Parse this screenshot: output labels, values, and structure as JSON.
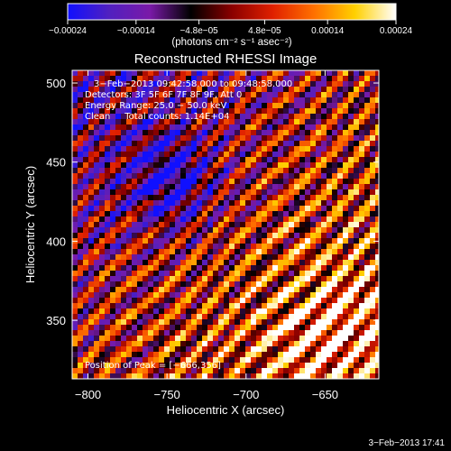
{
  "chart_data": {
    "type": "heatmap",
    "title": "Reconstructed RHESSI Image",
    "xlabel": "Heliocentric X (arcsec)",
    "ylabel": "Heliocentric Y (arcsec)",
    "xlim": [
      -810,
      -616
    ],
    "ylim": [
      313,
      508
    ],
    "x_ticks": [
      -800,
      -750,
      -700,
      -650
    ],
    "x_tick_labels": [
      "−800",
      "−750",
      "−700",
      "−650"
    ],
    "y_ticks": [
      350,
      400,
      450,
      500
    ],
    "y_tick_labels": [
      "350",
      "400",
      "450",
      "500"
    ],
    "colorbar": {
      "range": [
        -0.00024,
        0.00024
      ],
      "tick_values": [
        -0.00024,
        -0.00014,
        -4.8e-05,
        4.8e-05,
        0.00014,
        0.00024
      ],
      "tick_labels": [
        "−0.00024",
        "−0.00014",
        "−4.8e−05",
        "4.8e−05",
        "0.00014",
        "0.00024"
      ],
      "unit_label": "(photons cm⁻² s⁻¹ asec⁻²)",
      "colors": [
        "#1010ff",
        "#5020c0",
        "#7a1aa8",
        "#000000",
        "#8a0000",
        "#e02000",
        "#ff7000",
        "#ffd000",
        "#ffffff"
      ]
    },
    "annotations": [
      "3−Feb−2013 09:42:58.000 to 09:48:58.000",
      "Detectors: 3F 5F 6F 7F 8F 9F, Att 0",
      "Energy Range: 25.0 − 50.0 keV",
      "Clean     Total counts: 1.14E+04",
      "Position of Peak = [−666,356]"
    ],
    "peak_position": [
      -666,
      356
    ],
    "grid": false
  },
  "footer": {
    "timestamp": "3−Feb−2013 17:41"
  }
}
